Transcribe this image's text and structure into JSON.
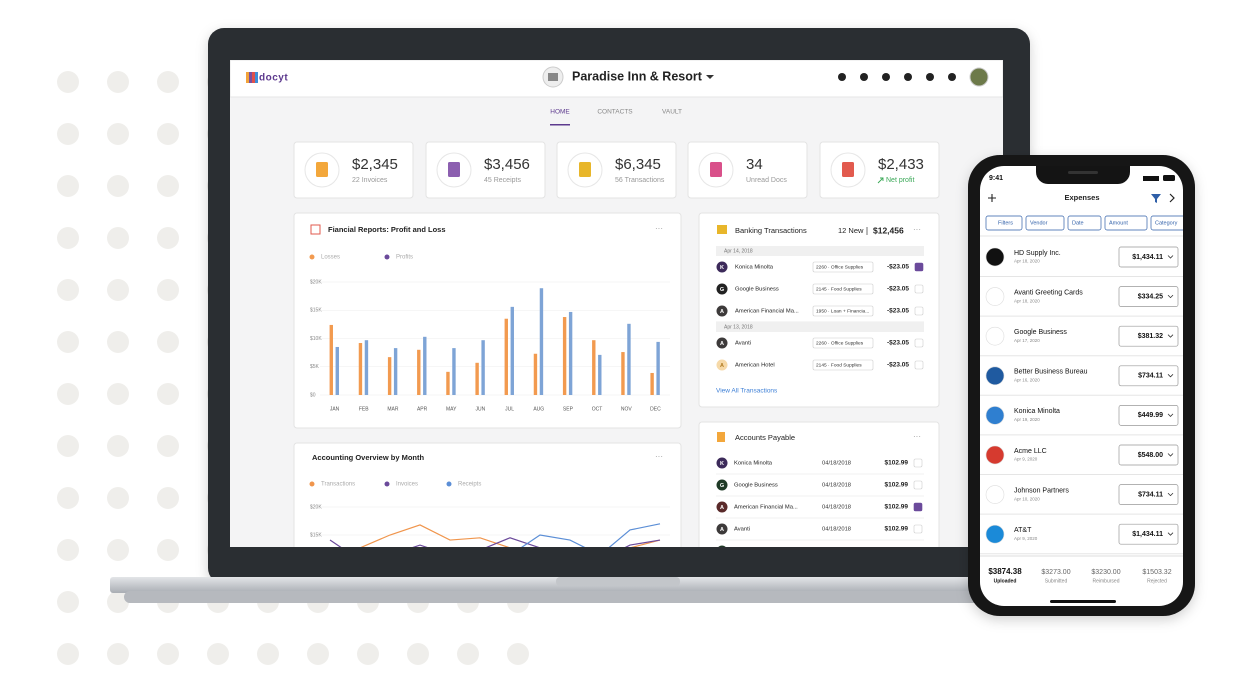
{
  "laptop": {
    "brand": "docyt",
    "property": "Paradise Inn & Resort",
    "tabs": [
      "HOME",
      "CONTACTS",
      "VAULT"
    ],
    "kpis": [
      {
        "value": "$2,345",
        "label": "22 Invoices"
      },
      {
        "value": "$3,456",
        "label": "45 Receipts"
      },
      {
        "value": "$6,345",
        "label": "56 Transactions"
      },
      {
        "value": "34",
        "label": "Unread Docs"
      },
      {
        "value": "$2,433",
        "label": "Net profit"
      }
    ],
    "banking": {
      "title": "Banking Transactions",
      "new": "12 New",
      "total": "$12,456",
      "groups": [
        {
          "date": "Apr 14, 2018",
          "rows": [
            {
              "initial": "K",
              "name": "Konica Minolta",
              "category": "2260 · Office Supplies",
              "amount": "-$23.05"
            },
            {
              "initial": "G",
              "name": "Google Business",
              "category": "2145 · Food Supplies",
              "amount": "-$23.05"
            },
            {
              "initial": "A",
              "name": "American Financial Ma...",
              "category": "1950 · Loan + Financia...",
              "amount": "-$23.05"
            }
          ]
        },
        {
          "date": "Apr 13, 2018",
          "rows": [
            {
              "initial": "A",
              "name": "Avanti",
              "category": "2260 · Office Supplies",
              "amount": "-$23.05"
            },
            {
              "initial": "A",
              "name": "American Hotel",
              "category": "2145 · Food Supplies",
              "amount": "-$23.05"
            }
          ]
        }
      ],
      "link": "View All Transactions"
    },
    "payable": {
      "title": "Accounts Payable",
      "rows": [
        {
          "initial": "K",
          "name": "Konica Minolta",
          "date": "04/18/2018",
          "amount": "$102.99"
        },
        {
          "initial": "G",
          "name": "Google Business",
          "date": "04/18/2018",
          "amount": "$102.99"
        },
        {
          "initial": "A",
          "name": "American Financial Ma...",
          "date": "04/18/2018",
          "amount": "$102.99"
        },
        {
          "initial": "A",
          "name": "Avanti",
          "date": "04/18/2018",
          "amount": "$102.99"
        }
      ]
    }
  },
  "chart_data": [
    {
      "type": "bar",
      "title": "Fiancial Reports: Profit and Loss",
      "categories": [
        "JAN",
        "FEB",
        "MAR",
        "APR",
        "MAY",
        "JUN",
        "JUL",
        "AUG",
        "SEP",
        "OCT",
        "NOV",
        "DEC"
      ],
      "series": [
        {
          "name": "Losses",
          "color": "#f29a4f",
          "legend_color": "#f29a4f",
          "values": [
            12400,
            9200,
            6700,
            8000,
            4100,
            5700,
            13500,
            7300,
            13800,
            9700,
            7600,
            3900
          ]
        },
        {
          "name": "Profits",
          "color": "#7ea4d6",
          "legend_color": "#6b4a9b",
          "values": [
            8500,
            9700,
            8300,
            10300,
            8300,
            9700,
            15600,
            18900,
            14700,
            7100,
            12600,
            9400
          ]
        }
      ],
      "ylim": [
        0,
        20000
      ],
      "yticks": [
        {
          "value": 0,
          "label": "$0"
        },
        {
          "value": 5000,
          "label": "$5K"
        },
        {
          "value": 10000,
          "label": "$10K"
        },
        {
          "value": 15000,
          "label": "$15K"
        },
        {
          "value": 20000,
          "label": "$20K"
        }
      ],
      "grid": true
    },
    {
      "type": "line",
      "title": "Accounting Overview by Month",
      "series": [
        {
          "name": "Transactions",
          "color": "#f0954c",
          "values": [
            10500,
            12700,
            15000,
            16800,
            14100,
            14500,
            12700,
            10500,
            9600,
            10500,
            12700,
            14100
          ]
        },
        {
          "name": "Invoices",
          "color": "#6b4a9b",
          "values": [
            14100,
            10500,
            11400,
            13200,
            11400,
            12300,
            14500,
            12700,
            12000,
            10500,
            13200,
            14100
          ]
        },
        {
          "name": "Receipts",
          "color": "#5b8ed6",
          "values": [
            8800,
            7900,
            9600,
            10500,
            9600,
            10500,
            11400,
            15000,
            14100,
            11400,
            15900,
            17000
          ]
        }
      ],
      "ylim": [
        0,
        20000
      ],
      "yticks": [
        {
          "value": 15000,
          "label": "$15K"
        },
        {
          "value": 20000,
          "label": "$20K"
        }
      ],
      "grid": true
    }
  ],
  "phone": {
    "time": "9:41",
    "title": "Expenses",
    "filters": [
      "Filters",
      "Vendor",
      "Date",
      "Amount",
      "Category"
    ],
    "items": [
      {
        "name": "HD Supply Inc.",
        "date": "Apr 18, 2020",
        "amount": "$1,434.11"
      },
      {
        "name": "Avanti Greeting Cards",
        "date": "Apr 18, 2020",
        "amount": "$334.25"
      },
      {
        "name": "Google Business",
        "date": "Apr 17, 2020",
        "amount": "$381.32"
      },
      {
        "name": "Better Business Bureau",
        "date": "Apr 16, 2020",
        "amount": "$734.11"
      },
      {
        "name": "Konica Minolta",
        "date": "Apr 19, 2020",
        "amount": "$449.99"
      },
      {
        "name": "Acme LLC",
        "date": "Apr 9, 2020",
        "amount": "$548.00"
      },
      {
        "name": "Johnson Partners",
        "date": "Apr 10, 2020",
        "amount": "$734.11"
      },
      {
        "name": "AT&T",
        "date": "Apr 9, 2020",
        "amount": "$1,434.11"
      }
    ],
    "summary": [
      {
        "value": "$3874.38",
        "label": "Uploaded"
      },
      {
        "value": "$3273.00",
        "label": "Submitted"
      },
      {
        "value": "$3230.00",
        "label": "Reimbursed"
      },
      {
        "value": "$1503.32",
        "label": "Rejected"
      }
    ]
  }
}
